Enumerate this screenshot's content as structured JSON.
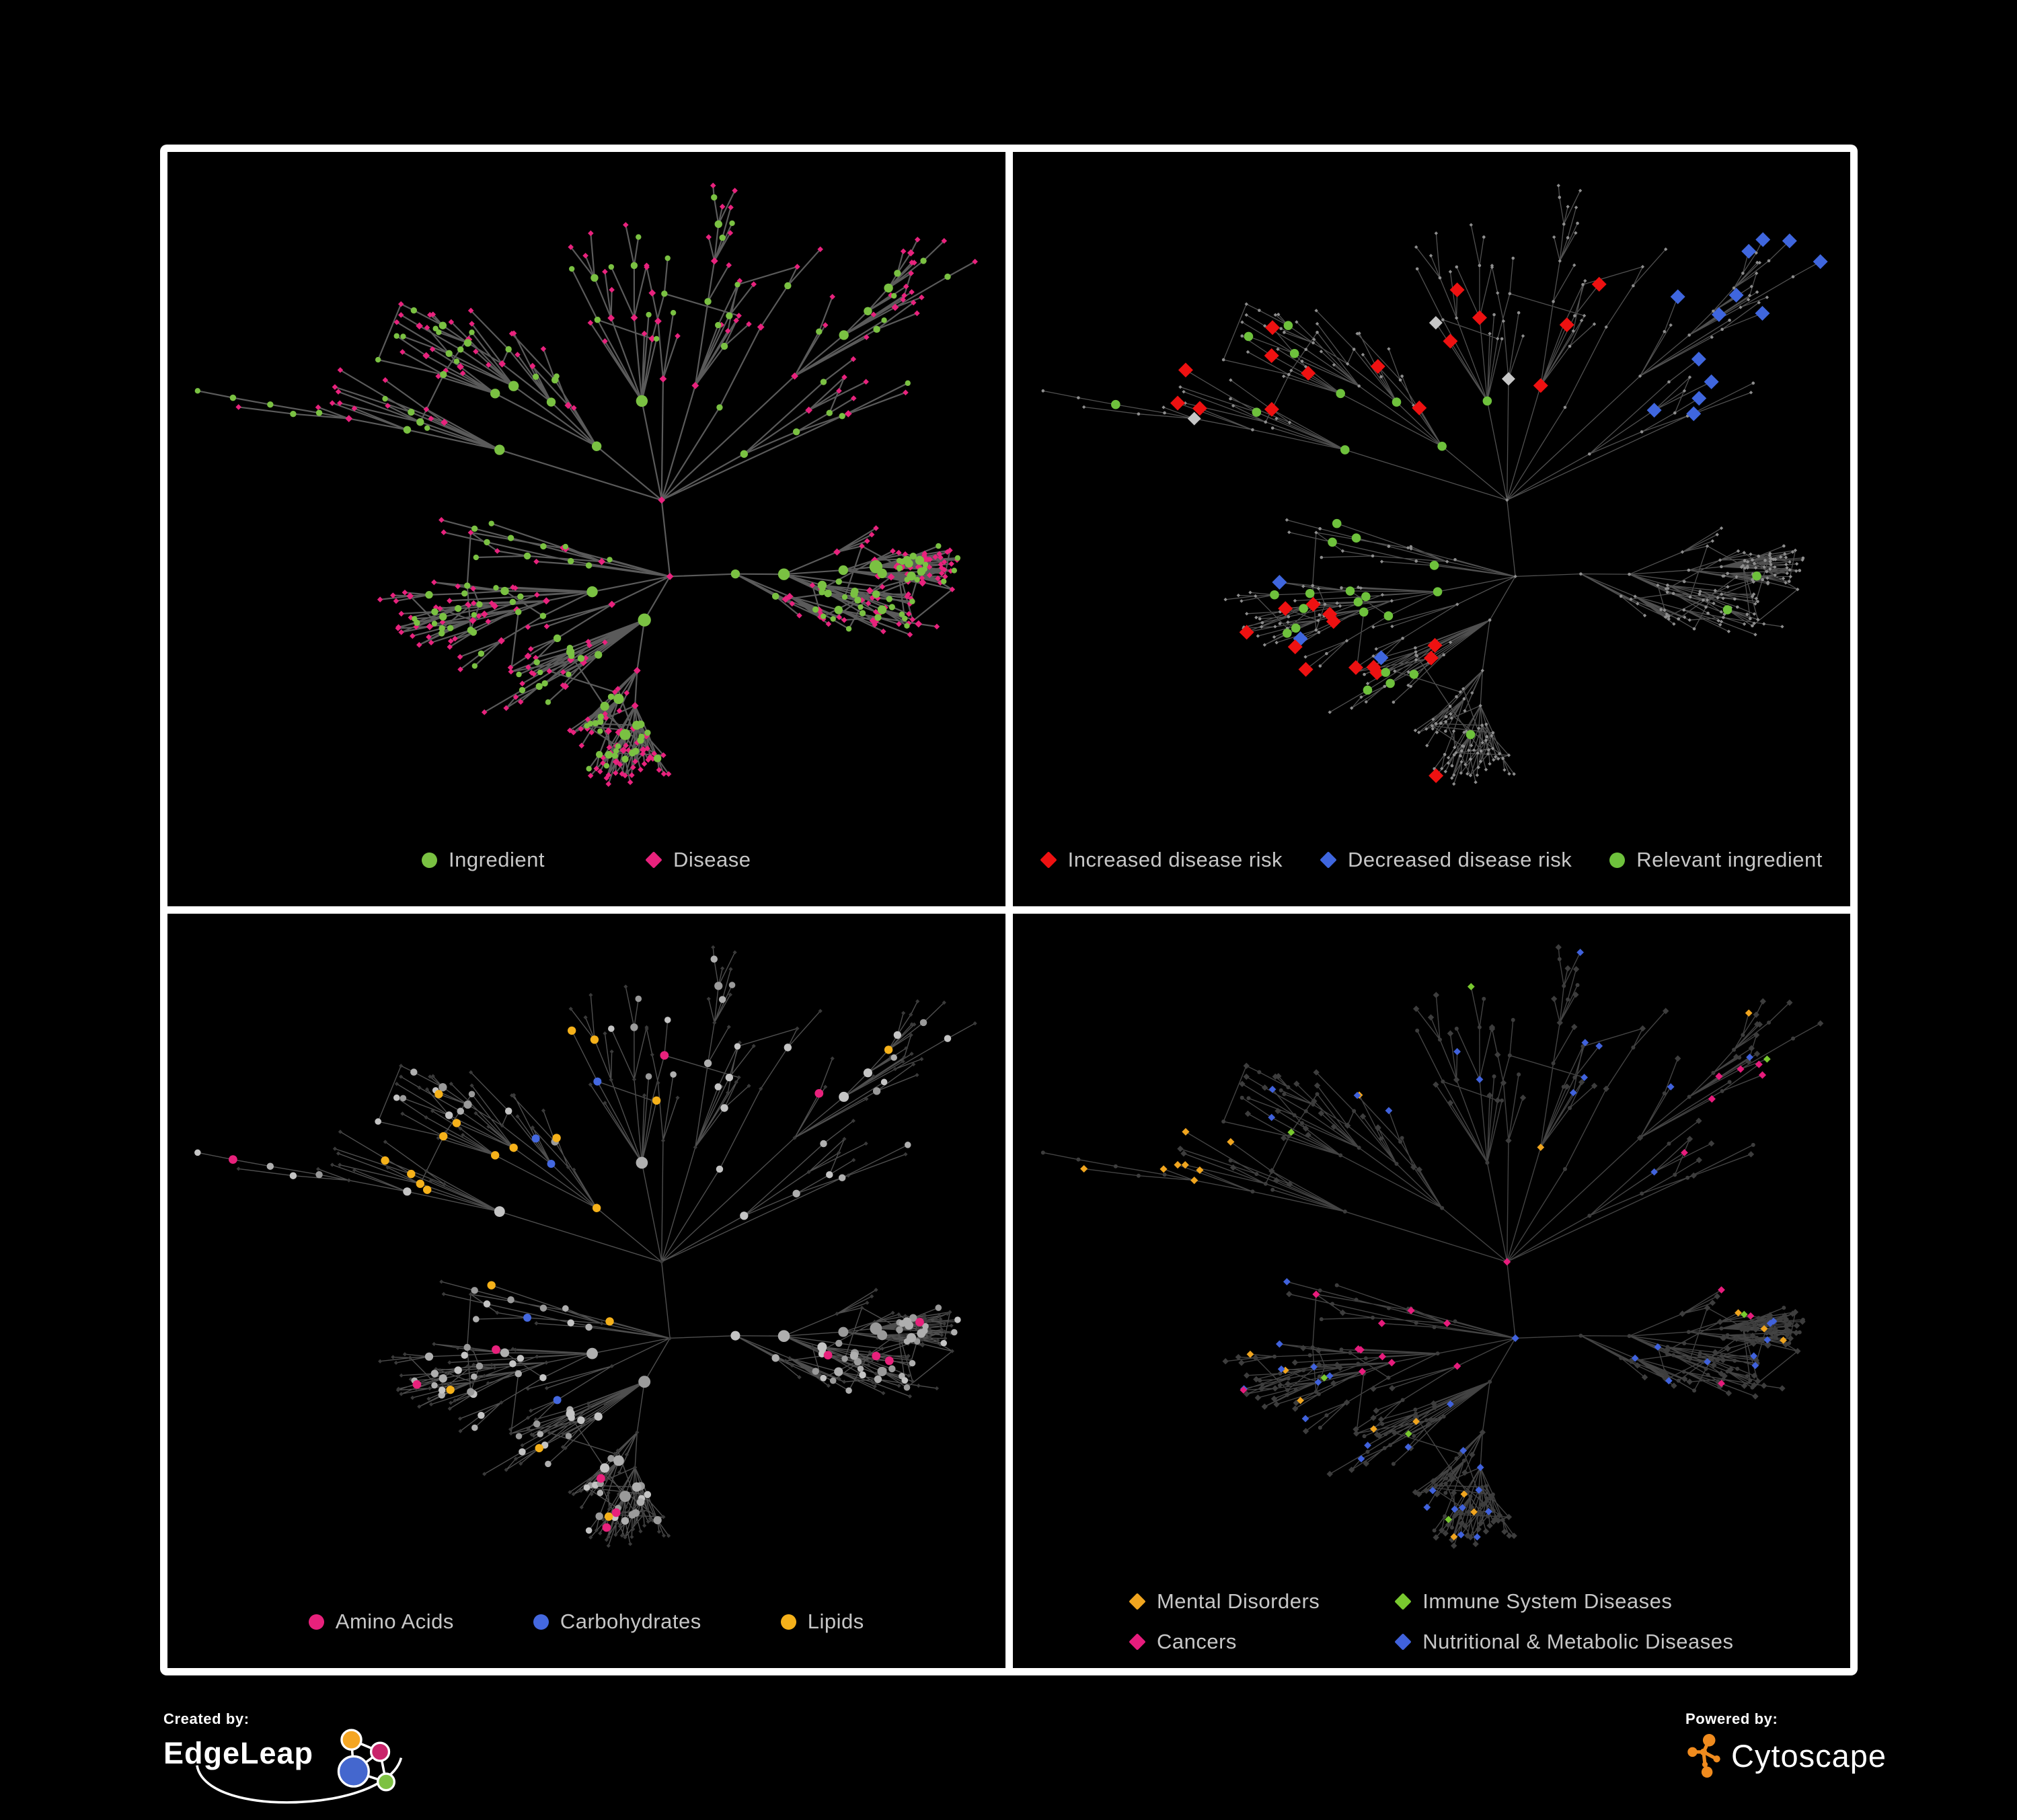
{
  "figure": {
    "background": "#000000",
    "frame_color": "#ffffff"
  },
  "panels": [
    {
      "name": "ingredient-disease-network",
      "legend": [
        {
          "label": "Ingredient",
          "shape": "circle",
          "color": "#7AC142"
        },
        {
          "label": "Disease",
          "shape": "diamond",
          "color": "#E8227D"
        }
      ],
      "style": {
        "edge": "#6A6A6A",
        "edge_width": 2.2,
        "circle": "#7AC142",
        "diamond": "#E8227D"
      }
    },
    {
      "name": "disease-risk-network",
      "legend": [
        {
          "label": "Increased disease risk",
          "shape": "diamond",
          "color": "#EE1111"
        },
        {
          "label": "Decreased disease risk",
          "shape": "diamond",
          "color": "#3F66DE"
        },
        {
          "label": "Relevant ingredient",
          "shape": "circle",
          "color": "#6EC13C"
        }
      ],
      "style": {
        "edge": "#5E5E5E",
        "edge_width": 1.3,
        "base": "#8E8E8E",
        "increased": "#EE1111",
        "decreased": "#3F66DE",
        "neutral": "#C6C6C6",
        "relevant": "#6EC13C"
      }
    },
    {
      "name": "macronutrient-network",
      "legend": [
        {
          "label": "Amino Acids",
          "shape": "circle",
          "color": "#E8217C"
        },
        {
          "label": "Carbohydrates",
          "shape": "circle",
          "color": "#4468DF"
        },
        {
          "label": "Lipids",
          "shape": "circle",
          "color": "#F5B11A"
        }
      ],
      "style": {
        "edge": "#5C5C5C",
        "edge_width": 1.4,
        "diamond": "#3A3A3A",
        "circle_grays": [
          "#C4C4C4",
          "#AFAFAF",
          "#9A9A9A"
        ],
        "amino": "#E8217C",
        "carb": "#4468DF",
        "lipid": "#F5B11A"
      }
    },
    {
      "name": "disease-category-network",
      "legend_columns": 2,
      "legend": [
        {
          "label": "Mental Disorders",
          "shape": "diamond",
          "color": "#F0A51F"
        },
        {
          "label": "Immune System Diseases",
          "shape": "diamond",
          "color": "#79C92F"
        },
        {
          "label": "Cancers",
          "shape": "diamond",
          "color": "#E61C7C"
        },
        {
          "label": "Nutritional & Metabolic Diseases",
          "shape": "diamond",
          "color": "#4062DC"
        }
      ],
      "style": {
        "edge": "#4F4F4F",
        "edge_width": 1.4,
        "base": "#3D3D3D",
        "mental": "#F0A51F",
        "immune": "#79C92F",
        "cancer": "#E61C7C",
        "nutritional": "#4062DC"
      }
    }
  ],
  "footer": {
    "created_by": "Created by:",
    "created_brand": "EdgeLeap",
    "powered_by": "Powered by:",
    "powered_brand": "Cytoscape",
    "edgeleap_colors": {
      "orange": "#F5A623",
      "magenta": "#C9256B",
      "blue": "#4467CE",
      "green": "#7DC142"
    },
    "cytoscape_color": "#F08B1E"
  }
}
